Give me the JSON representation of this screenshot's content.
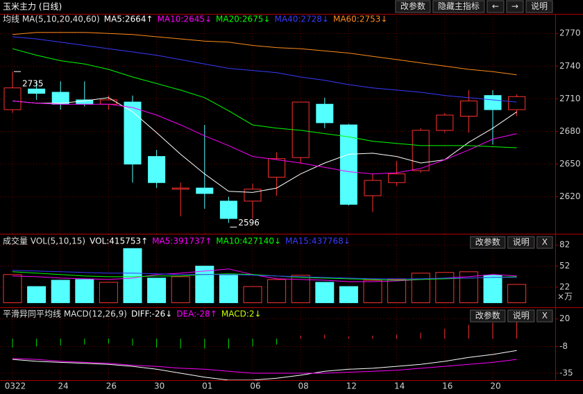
{
  "ui": {
    "title": "玉米主力 (日线)",
    "buttons": [
      "改参数",
      "隐藏主指标",
      "←",
      "→",
      "说明"
    ]
  },
  "chart_data": [
    {
      "type": "candlestick",
      "indicator": "均线 MA(5,10,20,40,60)",
      "categories": [
        "0322",
        null,
        "24",
        null,
        "26",
        null,
        "30",
        null,
        "01",
        null,
        "06",
        null,
        "08",
        null,
        "12",
        null,
        "14",
        null,
        "16",
        null,
        "20",
        null
      ],
      "open": [
        2700,
        2719,
        2716,
        2709,
        2705,
        2707,
        2657,
        2627,
        2628,
        2616,
        2616,
        2638,
        2656,
        2705,
        2686,
        2621,
        2633,
        2644,
        2681,
        2694,
        2713,
        2700
      ],
      "high": [
        2735,
        2726,
        2726,
        2726,
        2713,
        2713,
        2663,
        2633,
        2686,
        2620,
        2632,
        2661,
        2707,
        2711,
        2687,
        2641,
        2653,
        2683,
        2697,
        2718,
        2718,
        2714
      ],
      "low": [
        2697,
        2709,
        2700,
        2703,
        2700,
        2633,
        2628,
        2602,
        2609,
        2596,
        2600,
        2621,
        2651,
        2683,
        2612,
        2606,
        2630,
        2642,
        2679,
        2679,
        2668,
        2694
      ],
      "close": [
        2720,
        2715,
        2705,
        2705,
        2709,
        2650,
        2633,
        2628,
        2623,
        2600,
        2627,
        2655,
        2707,
        2688,
        2613,
        2635,
        2641,
        2681,
        2695,
        2708,
        2700,
        2712
      ],
      "up_color": "#ff3232",
      "down_color": "#54ffff",
      "series": [
        {
          "name": "MA5:2664↑",
          "color": "#ffffff",
          "values": [
            2708,
            2706,
            2706,
            2708,
            2711,
            2698,
            2679,
            2659,
            2641,
            2625,
            2624,
            2628,
            2641,
            2651,
            2659,
            2660,
            2657,
            2651,
            2654,
            2670,
            2683,
            2698
          ]
        },
        {
          "name": "MA10:2645↓",
          "color": "#ff00ff",
          "values": [
            2708,
            2706,
            2705,
            2705,
            2705,
            2702,
            2695,
            2686,
            2676,
            2667,
            2657,
            2654,
            2651,
            2647,
            2643,
            2641,
            2642,
            2646,
            2654,
            2663,
            2673,
            2678
          ]
        },
        {
          "name": "MA20:2675↓",
          "color": "#00ff00",
          "values": [
            2756,
            2750,
            2745,
            2742,
            2737,
            2730,
            2724,
            2718,
            2711,
            2699,
            2686,
            2683,
            2681,
            2678,
            2675,
            2671,
            2669,
            2667,
            2667,
            2667,
            2666,
            2665
          ]
        },
        {
          "name": "MA40:2728↓",
          "color": "#3a3aff",
          "values": [
            2767,
            2765,
            2762,
            2759,
            2756,
            2753,
            2750,
            2746,
            2742,
            2738,
            2736,
            2734,
            2730,
            2727,
            2723,
            2720,
            2718,
            2716,
            2713,
            2711,
            2709,
            2707
          ]
        },
        {
          "name": "MA60:2753↓",
          "color": "#ff8c1a",
          "values": [
            2769,
            2771,
            2771,
            2771,
            2770,
            2769,
            2767,
            2765,
            2763,
            2762,
            2759,
            2757,
            2756,
            2754,
            2752,
            2749,
            2746,
            2743,
            2740,
            2737,
            2735,
            2732
          ]
        }
      ],
      "ylim": [
        2586,
        2788
      ],
      "yticks": [
        2620,
        2650,
        2680,
        2710,
        2740,
        2770
      ],
      "grid": true
    },
    {
      "type": "volume",
      "indicator": "成交量 VOL(5,10,15)",
      "unit": "×万",
      "buttons": [
        "改参数",
        "说明",
        "X"
      ],
      "series": [
        {
          "name": "VOL:415753↑",
          "color": "#ffffff",
          "values": [
            40,
            23,
            32,
            33,
            29,
            77,
            35,
            37,
            52,
            39,
            23,
            33,
            39,
            29,
            23,
            32,
            33,
            42,
            43,
            44,
            39,
            26
          ]
        },
        {
          "name": "MA5:391737↑",
          "color": "#ff00ff",
          "values": [
            38,
            37,
            35,
            34,
            33,
            35,
            40,
            42,
            45,
            48,
            40,
            34,
            33,
            32,
            30,
            30,
            31,
            33,
            35,
            37,
            40,
            38
          ]
        },
        {
          "name": "MA10:427140↓",
          "color": "#00ff00",
          "values": [
            44,
            42,
            40,
            38,
            37,
            37,
            38,
            38,
            40,
            41,
            40,
            38,
            36,
            35,
            34,
            33,
            32,
            33,
            34,
            35,
            36,
            37
          ]
        },
        {
          "name": "MA15:437768↓",
          "color": "#3a3aff",
          "values": [
            46,
            45,
            44,
            43,
            42,
            42,
            41,
            40,
            40,
            40,
            39,
            38,
            37,
            36,
            35,
            34,
            34,
            34,
            35,
            35,
            36,
            36
          ]
        }
      ],
      "ylim": [
        -5.5,
        97
      ],
      "yticks": [
        22,
        52,
        82
      ],
      "grid": true
    },
    {
      "type": "macd",
      "indicator": "平滑异同平均线 MACD(12,26,9)",
      "buttons": [
        "改参数",
        "说明",
        "X"
      ],
      "up_color": "#ff3232",
      "down_color": "#00e000",
      "series": [
        {
          "name": "DIFF:-26↓",
          "color": "#ffffff",
          "values": [
            -21,
            -23,
            -24,
            -25,
            -26,
            -28,
            -31,
            -35,
            -39,
            -42,
            -42,
            -40,
            -37,
            -33,
            -31,
            -30,
            -28,
            -26,
            -23,
            -19,
            -16,
            -12
          ]
        },
        {
          "name": "DEA:-28↑",
          "color": "#ff00ff",
          "values": [
            -20,
            -21,
            -23,
            -24,
            -25,
            -27,
            -28,
            -30,
            -31,
            -33,
            -35,
            -35,
            -35,
            -35,
            -34,
            -33,
            -32,
            -30,
            -28,
            -26,
            -24,
            -21
          ]
        },
        {
          "name": "MACD:2↓",
          "color": "#c8ff00",
          "values": [
            -9,
            -8,
            -7,
            -6,
            -5,
            -7,
            -9,
            -10,
            -10,
            -10,
            -8,
            -6,
            3,
            4,
            2,
            3,
            4,
            6,
            10,
            14,
            16,
            17
          ]
        }
      ],
      "ylim": [
        -42,
        31
      ],
      "yticks": [
        -35,
        -8,
        20
      ],
      "grid": true
    }
  ]
}
